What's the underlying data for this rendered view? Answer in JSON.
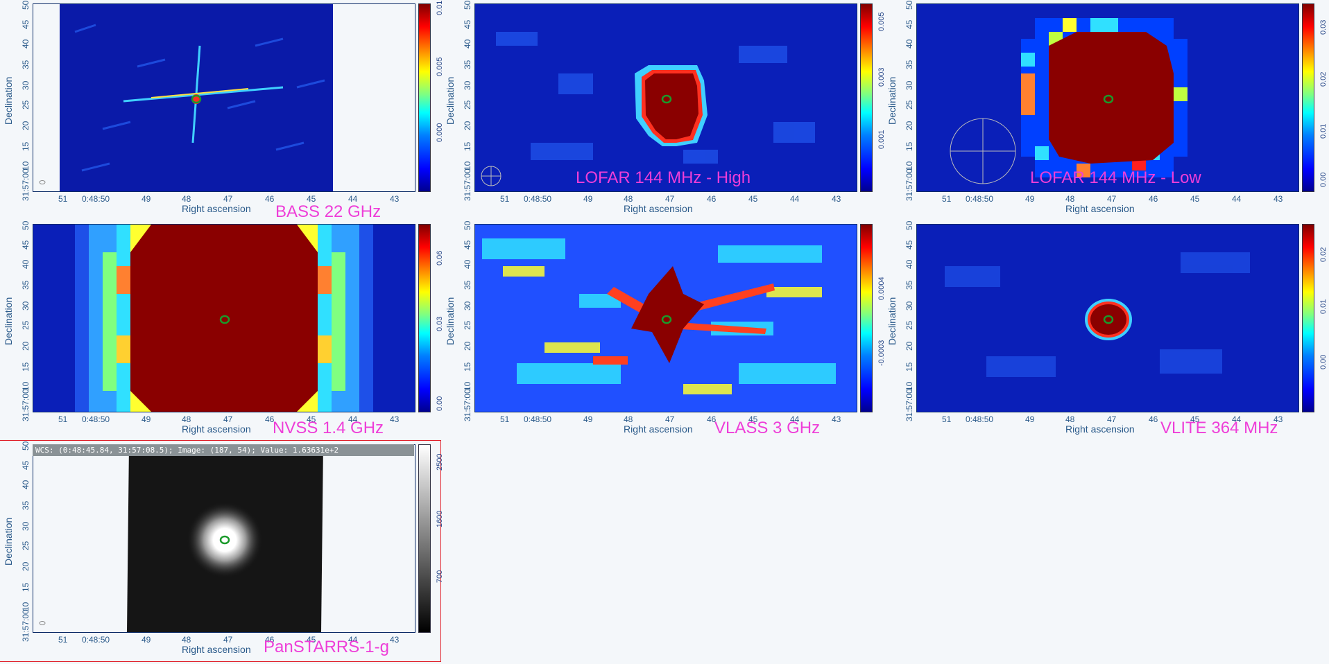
{
  "axes": {
    "xlabel": "Right ascension",
    "ylabel": "Declination",
    "xticks": [
      "51",
      "0:48:50",
      "49",
      "48",
      "47",
      "46",
      "45",
      "44",
      "43"
    ],
    "yticks": [
      "31:57:00",
      "10",
      "15",
      "20",
      "25",
      "30",
      "35",
      "40",
      "45",
      "50"
    ]
  },
  "panels": [
    {
      "name": "BASS 22 GHz",
      "cbar_ticks": [
        "0.000",
        "0.005",
        "0.01"
      ],
      "cmap": "jet"
    },
    {
      "name": "LOFAR 144 MHz - High",
      "cbar_ticks": [
        "0.001",
        "0.003",
        "0.005"
      ],
      "cmap": "jet"
    },
    {
      "name": "LOFAR 144 MHz - Low",
      "cbar_ticks": [
        "0.00",
        "0.01",
        "0.02",
        "0.03"
      ],
      "cmap": "jet"
    },
    {
      "name": "NVSS 1.4 GHz",
      "cbar_ticks": [
        "0.00",
        "0.03",
        "0.06"
      ],
      "cmap": "jet"
    },
    {
      "name": "VLASS 3 GHz",
      "cbar_ticks": [
        "-0.0003",
        "0.0004"
      ],
      "cmap": "jet"
    },
    {
      "name": "VLITE 364 MHz",
      "cbar_ticks": [
        "0.00",
        "0.01",
        "0.02"
      ],
      "cmap": "jet"
    },
    {
      "name": "PanSTARRS-1-g",
      "cbar_ticks": [
        "700",
        "1600",
        "2500"
      ],
      "cmap": "gray",
      "wcs_readout": "WCS: (0:48:45.84, 31:57:08.5); Image: (187, 54); Value:  1.63631e+2"
    }
  ],
  "colors": {
    "label": "#ee3ed8",
    "axis_text": "#2a5a8a",
    "contour": "#1a9a2a",
    "selection": "#e0202a"
  }
}
